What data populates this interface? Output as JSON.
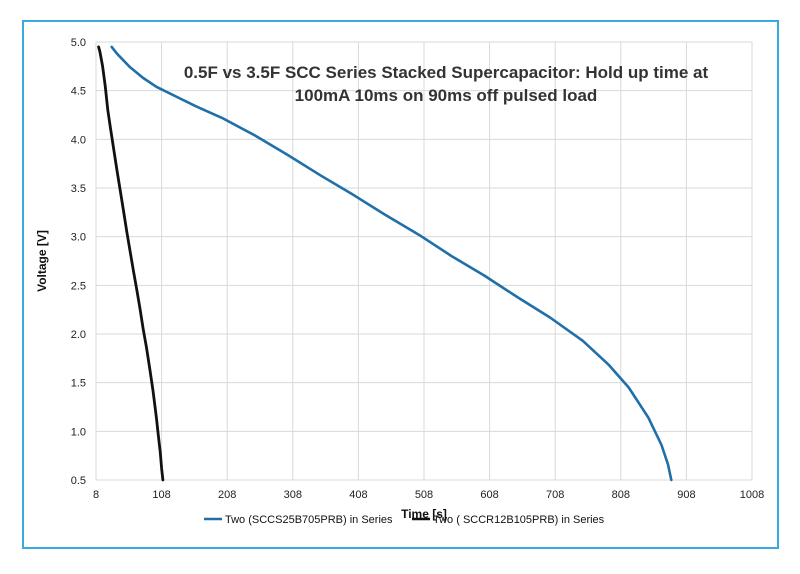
{
  "chart_data": {
    "type": "line",
    "title_lines": [
      "0.5F vs 3.5F SCC Series Stacked Supercapacitor: Hold up time at",
      "100mA 10ms on 90ms off pulsed load"
    ],
    "xlabel": "Time [s]",
    "ylabel": "Voltage [V]",
    "xlim": [
      8,
      1008
    ],
    "ylim": [
      0.5,
      5.0
    ],
    "xticks": [
      8,
      108,
      208,
      308,
      408,
      508,
      608,
      708,
      808,
      908,
      1008
    ],
    "yticks": [
      "0.5",
      "1.0",
      "1.5",
      "2.0",
      "2.5",
      "3.0",
      "3.5",
      "4.0",
      "4.5",
      "5.0"
    ],
    "grid": true,
    "legend_position": "bottom",
    "series": [
      {
        "name": "Two (SCCS25B705PRB) in Series",
        "color": "#1f6fa8",
        "x": [
          32,
          40,
          60,
          80,
          100,
          130,
          160,
          200,
          250,
          300,
          350,
          400,
          450,
          500,
          550,
          600,
          650,
          700,
          750,
          790,
          820,
          850,
          870,
          880,
          885
        ],
        "y": [
          4.95,
          4.88,
          4.74,
          4.63,
          4.54,
          4.44,
          4.34,
          4.22,
          4.04,
          3.84,
          3.63,
          3.43,
          3.22,
          3.02,
          2.8,
          2.6,
          2.38,
          2.17,
          1.93,
          1.68,
          1.45,
          1.14,
          0.86,
          0.66,
          0.5
        ]
      },
      {
        "name": "Two ( SCCR12B105PRB) in Series",
        "color": "#111111",
        "x": [
          12,
          14,
          18,
          22,
          26,
          30,
          35,
          40,
          45,
          50,
          55,
          60,
          65,
          70,
          75,
          80,
          85,
          90,
          95,
          100,
          103,
          106,
          108,
          110
        ],
        "y": [
          4.95,
          4.9,
          4.75,
          4.55,
          4.3,
          4.12,
          3.9,
          3.68,
          3.47,
          3.26,
          3.05,
          2.85,
          2.65,
          2.46,
          2.26,
          2.05,
          1.86,
          1.64,
          1.41,
          1.14,
          0.96,
          0.78,
          0.62,
          0.5
        ]
      }
    ]
  }
}
